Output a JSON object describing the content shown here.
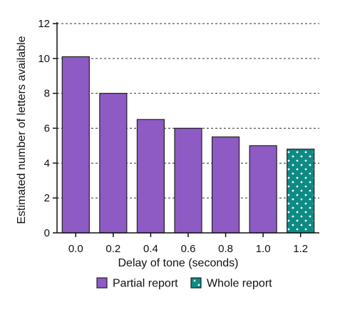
{
  "chart_data": {
    "type": "bar",
    "xlabel": "Delay of tone (seconds)",
    "ylabel": "Estimated number of letters available",
    "ylim": [
      0,
      12
    ],
    "yticks": [
      0,
      2,
      4,
      6,
      8,
      10,
      12
    ],
    "grid": "horizontal dashed",
    "legend_position": "bottom",
    "categories": [
      "0.0",
      "0.2",
      "0.4",
      "0.6",
      "0.8",
      "1.0",
      "1.2"
    ],
    "values": [
      10.1,
      8.0,
      6.5,
      6.0,
      5.5,
      5.0,
      4.8
    ],
    "bar_series": [
      "partial",
      "partial",
      "partial",
      "partial",
      "partial",
      "partial",
      "whole"
    ],
    "series": [
      {
        "key": "partial",
        "name": "Partial report",
        "color": "#8e5ac4",
        "pattern": "solid"
      },
      {
        "key": "whole",
        "name": "Whole report",
        "color": "#0e8a84",
        "pattern": "dots"
      }
    ]
  }
}
